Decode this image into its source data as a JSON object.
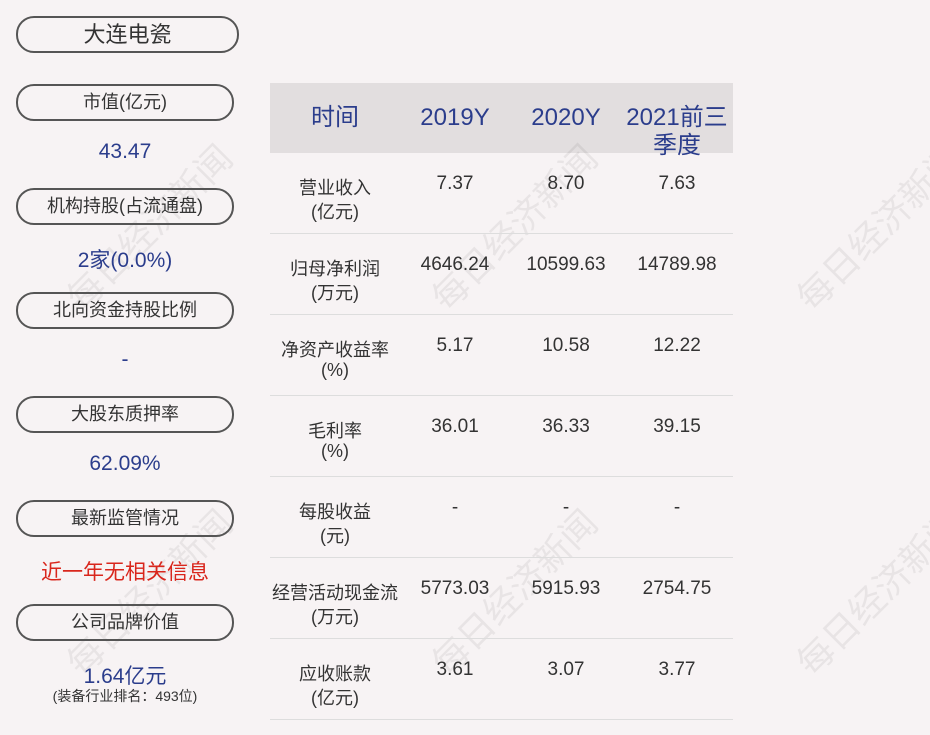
{
  "title": "大连电瓷",
  "metrics": [
    {
      "label": "市值(亿元)",
      "value": "43.47"
    },
    {
      "label": "机构持股(占流通盘)",
      "value": "2家(0.0%)"
    },
    {
      "label": "北向资金持股比例",
      "value": "-"
    },
    {
      "label": "大股东质押率",
      "value": "62.09%"
    },
    {
      "label": "最新监管情况",
      "value": "近一年无相关信息"
    },
    {
      "label": "公司品牌价值",
      "value": "1.64亿元",
      "note": "(装备行业排名：493位)"
    }
  ],
  "table": {
    "header": [
      "时间",
      "2019Y",
      "2020Y",
      "2021前三季度"
    ],
    "rows": [
      {
        "label": "营业收入",
        "unit": "(亿元)",
        "values": [
          "7.37",
          "8.70",
          "7.63"
        ]
      },
      {
        "label": "归母净利润",
        "unit": "(万元)",
        "values": [
          "4646.24",
          "10599.63",
          "14789.98"
        ]
      },
      {
        "label": "净资产收益率",
        "unit": "(%)",
        "values": [
          "5.17",
          "10.58",
          "12.22"
        ]
      },
      {
        "label": "毛利率",
        "unit": "(%)",
        "values": [
          "36.01",
          "36.33",
          "39.15"
        ]
      },
      {
        "label": "每股收益",
        "unit": "(元)",
        "values": [
          "-",
          "-",
          "-"
        ]
      },
      {
        "label": "经营活动现金流",
        "unit": "(万元)",
        "values": [
          "5773.03",
          "5915.93",
          "2754.75"
        ]
      },
      {
        "label": "应收账款",
        "unit": "(亿元)",
        "values": [
          "3.61",
          "3.07",
          "3.77"
        ]
      }
    ]
  },
  "watermark": "每日经济新闻"
}
